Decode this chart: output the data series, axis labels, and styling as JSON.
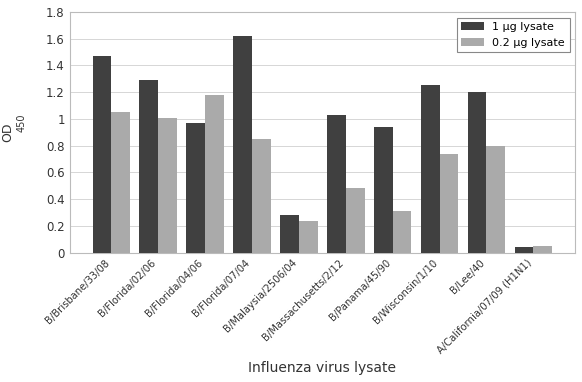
{
  "categories": [
    "B/Brisbane/33/08",
    "B/Florida/02/06",
    "B/Florida/04/06",
    "B/Florida/07/04",
    "B/Malaysia/2506/04",
    "B/Massachusetts/2/12",
    "B/Panama/45/90",
    "B/Wisconsin/1/10",
    "B/Lee/40",
    "A/California/07/09 (H1N1)"
  ],
  "series1_label": "1 μg lysate",
  "series2_label": "0.2 μg lysate",
  "series1_values": [
    1.47,
    1.29,
    0.97,
    1.62,
    0.28,
    1.03,
    0.94,
    1.25,
    1.2,
    0.045
  ],
  "series2_values": [
    1.05,
    1.01,
    1.18,
    0.85,
    0.24,
    0.48,
    0.31,
    0.74,
    0.8,
    0.048
  ],
  "series1_color": "#404040",
  "series2_color": "#aaaaaa",
  "xlabel": "Influenza virus lysate",
  "ylabel": "OD  450",
  "ylim": [
    0,
    1.8
  ],
  "yticks": [
    0.0,
    0.2,
    0.4,
    0.6,
    0.8,
    1.0,
    1.2,
    1.4,
    1.6,
    1.8
  ],
  "ytick_labels": [
    "0",
    "0.2",
    "0.4",
    "0.6",
    "0.8",
    "1",
    "1.2",
    "1.4",
    "1.6",
    "1.8"
  ],
  "bar_width": 0.4,
  "legend_loc": "upper right",
  "figsize": [
    5.82,
    3.82
  ],
  "dpi": 100
}
